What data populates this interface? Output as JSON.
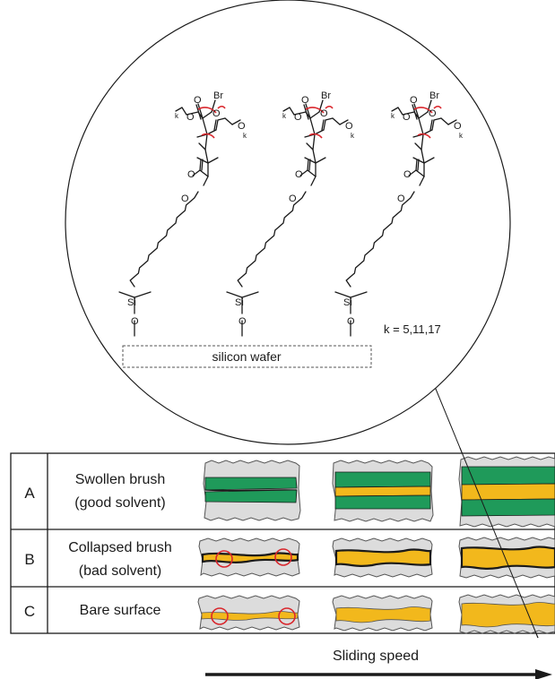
{
  "molecule": {
    "bromine_label": "Br",
    "oxygen_label": "O",
    "silicon_label": "Si",
    "subscript_k": "k",
    "k_values_text": "k = 5,11,17",
    "substrate_label": "silicon wafer"
  },
  "rows": [
    {
      "letter": "A",
      "label_line1": "Swollen brush",
      "label_line2": "(good solvent)"
    },
    {
      "letter": "B",
      "label_line1": "Collapsed brush",
      "label_line2": "(bad solvent)"
    },
    {
      "letter": "C",
      "label_line1": "Bare surface",
      "label_line2": ""
    }
  ],
  "axis": {
    "label": "Sliding speed"
  },
  "colors": {
    "brush_green": "#1f9a5a",
    "interface_yellow": "#f2b81c",
    "substrate_gray": "#dcdcdc",
    "marker_red": "#d9262c",
    "ink": "#1a1a1a"
  }
}
